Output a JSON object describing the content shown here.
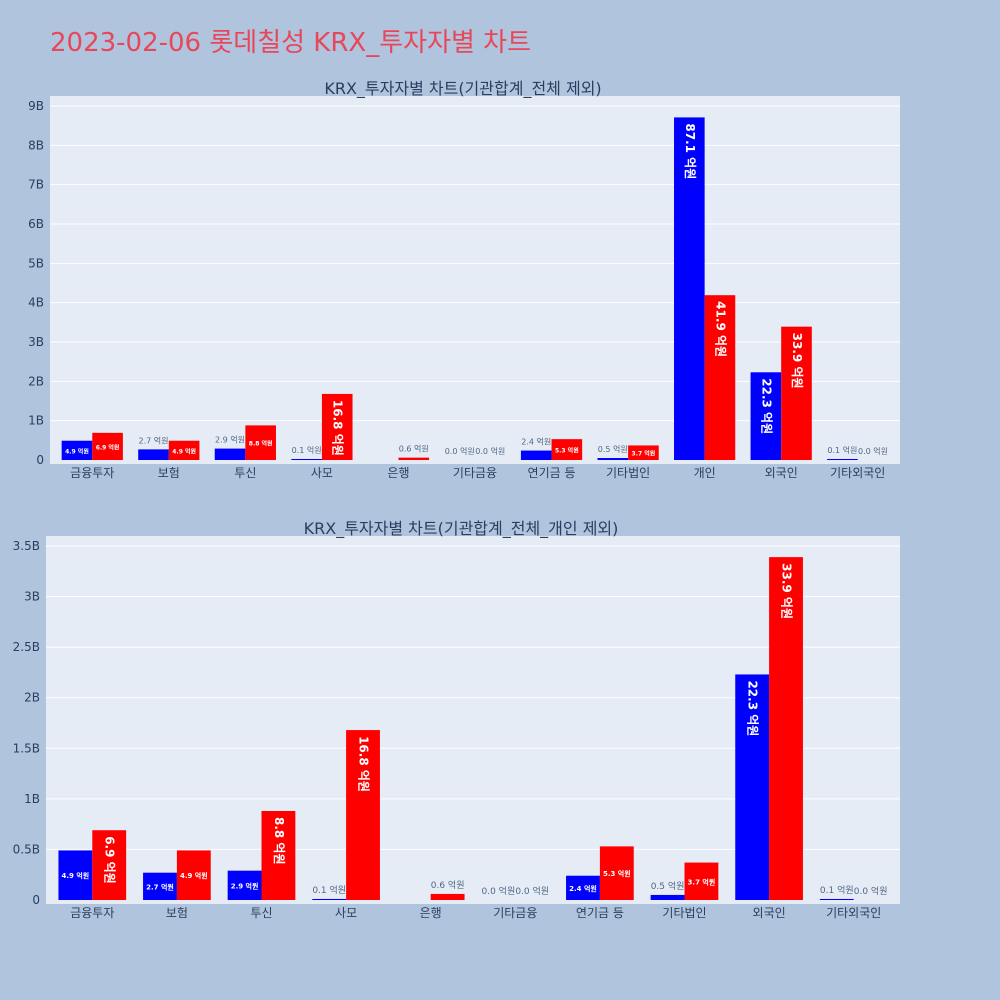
{
  "page": {
    "title": "2023-02-06 롯데칠성 KRX_투자자별 차트"
  },
  "colors": {
    "background": "#b0c4de",
    "plot_bg": "#e5ecf6",
    "title": "#e8475a",
    "sell": "#0000ff",
    "buy": "#ff0000"
  },
  "chart_data": [
    {
      "type": "bar",
      "title": "KRX_투자자별 차트(기관합계_전체 제외)",
      "categories": [
        "금융투자",
        "보험",
        "투신",
        "사모",
        "은행",
        "기타금융",
        "연기금 등",
        "기타법인",
        "개인",
        "외국인",
        "기타외국인"
      ],
      "ylim": [
        0,
        9000000000
      ],
      "yticks": [
        0,
        1000000000,
        2000000000,
        3000000000,
        4000000000,
        5000000000,
        6000000000,
        7000000000,
        8000000000,
        9000000000
      ],
      "ytick_labels": [
        "0",
        "1B",
        "2B",
        "3B",
        "4B",
        "5B",
        "6B",
        "7B",
        "8B",
        "9B"
      ],
      "grid": true,
      "series": [
        {
          "color": "#0000ff",
          "values": [
            490000000,
            270000000,
            290000000,
            10000000,
            0,
            0,
            240000000,
            50000000,
            8710000000,
            2230000000,
            10000000
          ],
          "labels": [
            "4.9 억원",
            "2.7 억원",
            "2.9 억원",
            "0.1 억원",
            "",
            "0.0 억원",
            "2.4 억원",
            "0.5 억원",
            "87.1 억원",
            "22.3 억원",
            "0.1 억원"
          ]
        },
        {
          "color": "#ff0000",
          "values": [
            690000000,
            490000000,
            880000000,
            1680000000,
            60000000,
            0,
            530000000,
            370000000,
            4190000000,
            3390000000,
            0
          ],
          "labels": [
            "6.9 억원",
            "4.9 억원",
            "8.8 억원",
            "16.8 억원",
            "0.6 억원",
            "0.0 억원",
            "5.3 억원",
            "3.7 억원",
            "41.9 억원",
            "33.9 억원",
            "0.0 억원"
          ]
        }
      ]
    },
    {
      "type": "bar",
      "title": "KRX_투자자별 차트(기관합계_전체_개인 제외)",
      "categories": [
        "금융투자",
        "보험",
        "투신",
        "사모",
        "은행",
        "기타금융",
        "연기금 등",
        "기타법인",
        "외국인",
        "기타외국인"
      ],
      "ylim": [
        0,
        3500000000
      ],
      "yticks": [
        0,
        500000000,
        1000000000,
        1500000000,
        2000000000,
        2500000000,
        3000000000,
        3500000000
      ],
      "ytick_labels": [
        "0",
        "0.5B",
        "1B",
        "1.5B",
        "2B",
        "2.5B",
        "3B",
        "3.5B"
      ],
      "grid": true,
      "series": [
        {
          "color": "#0000ff",
          "values": [
            490000000,
            270000000,
            290000000,
            10000000,
            0,
            0,
            240000000,
            50000000,
            2230000000,
            10000000
          ],
          "labels": [
            "4.9 억원",
            "2.7 억원",
            "2.9 억원",
            "0.1 억원",
            "",
            "0.0 억원",
            "2.4 억원",
            "0.5 억원",
            "22.3 억원",
            "0.1 억원"
          ]
        },
        {
          "color": "#ff0000",
          "values": [
            690000000,
            490000000,
            880000000,
            1680000000,
            60000000,
            0,
            530000000,
            370000000,
            3390000000,
            0
          ],
          "labels": [
            "6.9 억원",
            "4.9 억원",
            "8.8 억원",
            "16.8 억원",
            "0.6 억원",
            "0.0 억원",
            "5.3 억원",
            "3.7 억원",
            "33.9 억원",
            "0.0 억원"
          ]
        }
      ]
    }
  ]
}
